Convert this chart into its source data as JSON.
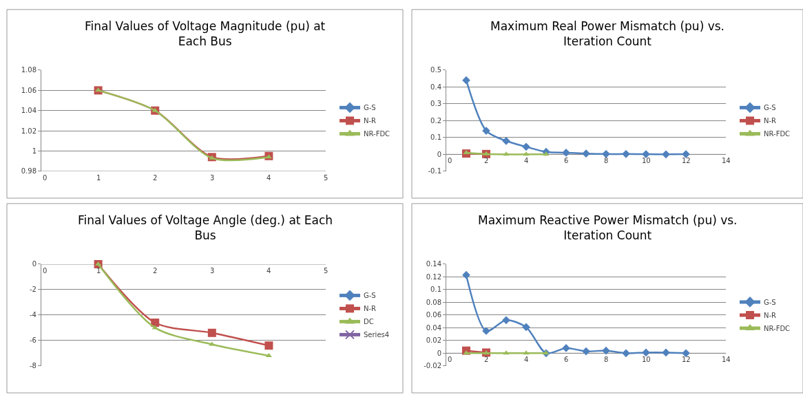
{
  "chart_data": [
    {
      "type": "line",
      "title": "Final Values of Voltage Magnitude (pu) at Each Bus",
      "x": [
        1,
        2,
        3,
        4
      ],
      "xlim": [
        0,
        5
      ],
      "xticks": [
        0,
        1,
        2,
        3,
        4,
        5
      ],
      "ylim": [
        0.98,
        1.08
      ],
      "yticks": [
        {
          "value": 0.98,
          "label": "0.98"
        },
        {
          "value": 1.0,
          "label": "1"
        },
        {
          "value": 1.02,
          "label": "1.02"
        },
        {
          "value": 1.04,
          "label": "1.04"
        },
        {
          "value": 1.06,
          "label": "1.06"
        },
        {
          "value": 1.08,
          "label": "1.08"
        }
      ],
      "grid": "y",
      "legend": "right",
      "series": [
        {
          "name": "G-S",
          "color": "#4f81bd",
          "marker": "diamond",
          "values": [
            null,
            null,
            null,
            null
          ]
        },
        {
          "name": "N-R",
          "color": "#c0504d",
          "marker": "square",
          "values": [
            1.06,
            1.04,
            0.994,
            0.995
          ]
        },
        {
          "name": "NR-FDC",
          "color": "#9bbb59",
          "marker": "triangle",
          "values": [
            1.06,
            1.04,
            0.993,
            0.994
          ]
        }
      ]
    },
    {
      "type": "line",
      "title": "Maximum Real Power Mismatch (pu) vs. Iteration Count",
      "x": [
        1,
        2,
        3,
        4,
        5,
        6,
        7,
        8,
        9,
        10,
        11,
        12
      ],
      "xlim": [
        0,
        14
      ],
      "xticks": [
        0,
        2,
        4,
        6,
        8,
        10,
        12,
        14
      ],
      "ylim": [
        -0.1,
        0.5
      ],
      "yticks": [
        -0.1,
        0,
        0.1,
        0.2,
        0.3,
        0.4,
        0.5
      ],
      "grid": "y",
      "legend": "right",
      "series": [
        {
          "name": "G-S",
          "color": "#4f81bd",
          "marker": "diamond",
          "values": [
            0.44,
            0.14,
            0.08,
            0.045,
            0.015,
            0.01,
            0.005,
            0.002,
            0.002,
            0.001,
            0.0,
            0.001
          ]
        },
        {
          "name": "N-R",
          "color": "#c0504d",
          "marker": "square",
          "x": [
            1,
            2
          ],
          "values": [
            0.005,
            0.002
          ]
        },
        {
          "name": "NR-FDC",
          "color": "#9bbb59",
          "marker": "triangle",
          "x": [
            1,
            2,
            3,
            4,
            5
          ],
          "values": [
            0.01,
            0.002,
            0.0,
            0.0,
            0.0
          ]
        }
      ]
    },
    {
      "type": "line",
      "title": "Final Values of Voltage Angle (deg.) at Each Bus",
      "x": [
        1,
        2,
        3,
        4
      ],
      "xlim": [
        0,
        5
      ],
      "xticks": [
        0,
        1,
        2,
        3,
        4,
        5
      ],
      "ylim": [
        -8,
        0
      ],
      "yticks": [
        -8,
        -6,
        -4,
        -2,
        0
      ],
      "grid": "y",
      "legend": "right",
      "series": [
        {
          "name": "G-S",
          "color": "#4f81bd",
          "marker": "diamond",
          "values": [
            null,
            null,
            null,
            null
          ]
        },
        {
          "name": "N-R",
          "color": "#c0504d",
          "marker": "square",
          "values": [
            0,
            -4.6,
            -5.4,
            -6.4
          ]
        },
        {
          "name": "DC",
          "color": "#9bbb59",
          "marker": "triangle",
          "values": [
            0,
            -5.0,
            -6.3,
            -7.2
          ]
        },
        {
          "name": "Series4",
          "color": "#8064a2",
          "marker": "cross",
          "values": [
            null,
            null,
            null,
            null
          ]
        }
      ]
    },
    {
      "type": "line",
      "title": "Maximum Reactive Power Mismatch (pu) vs. Iteration Count",
      "x": [
        1,
        2,
        3,
        4,
        5,
        6,
        7,
        8,
        9,
        10,
        11,
        12
      ],
      "xlim": [
        0,
        14
      ],
      "xticks": [
        0,
        2,
        4,
        6,
        8,
        10,
        12,
        14
      ],
      "ylim": [
        -0.02,
        0.14
      ],
      "yticks": [
        -0.02,
        0,
        0.02,
        0.04,
        0.06,
        0.08,
        0.1,
        0.12,
        0.14
      ],
      "grid": "y",
      "legend": "right",
      "series": [
        {
          "name": "G-S",
          "color": "#4f81bd",
          "marker": "diamond",
          "values": [
            0.123,
            0.035,
            0.052,
            0.041,
            0.0,
            0.008,
            0.003,
            0.004,
            0.0,
            0.001,
            0.001,
            0.0
          ]
        },
        {
          "name": "N-R",
          "color": "#c0504d",
          "marker": "square",
          "x": [
            1,
            2
          ],
          "values": [
            0.004,
            0.001
          ]
        },
        {
          "name": "NR-FDC",
          "color": "#9bbb59",
          "marker": "triangle",
          "x": [
            1,
            2,
            3,
            4,
            5
          ],
          "values": [
            0.0,
            0.0,
            0.0,
            0.0,
            0.0
          ]
        }
      ]
    }
  ]
}
